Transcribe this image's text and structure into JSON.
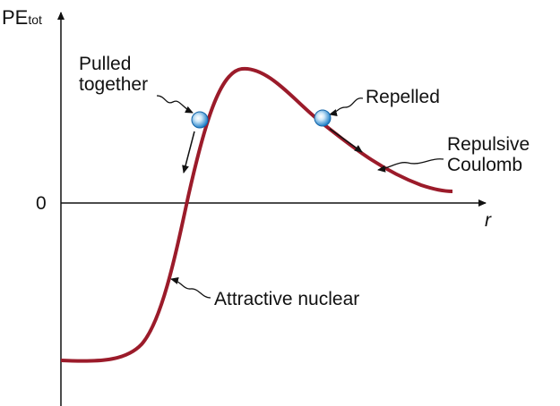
{
  "axes": {
    "y_label_main": "PE",
    "y_label_sub": "tot",
    "x_label": "r",
    "zero_label": "0"
  },
  "labels": {
    "pulled_line1": "Pulled",
    "pulled_line2": "together",
    "repelled": "Repelled",
    "repulsive_line1": "Repulsive",
    "repulsive_line2": "Coulomb",
    "attractive": "Attractive nuclear"
  },
  "colors": {
    "curve": "#9b1b2a",
    "ball": "#1e7fc8",
    "axis": "#111111"
  }
}
